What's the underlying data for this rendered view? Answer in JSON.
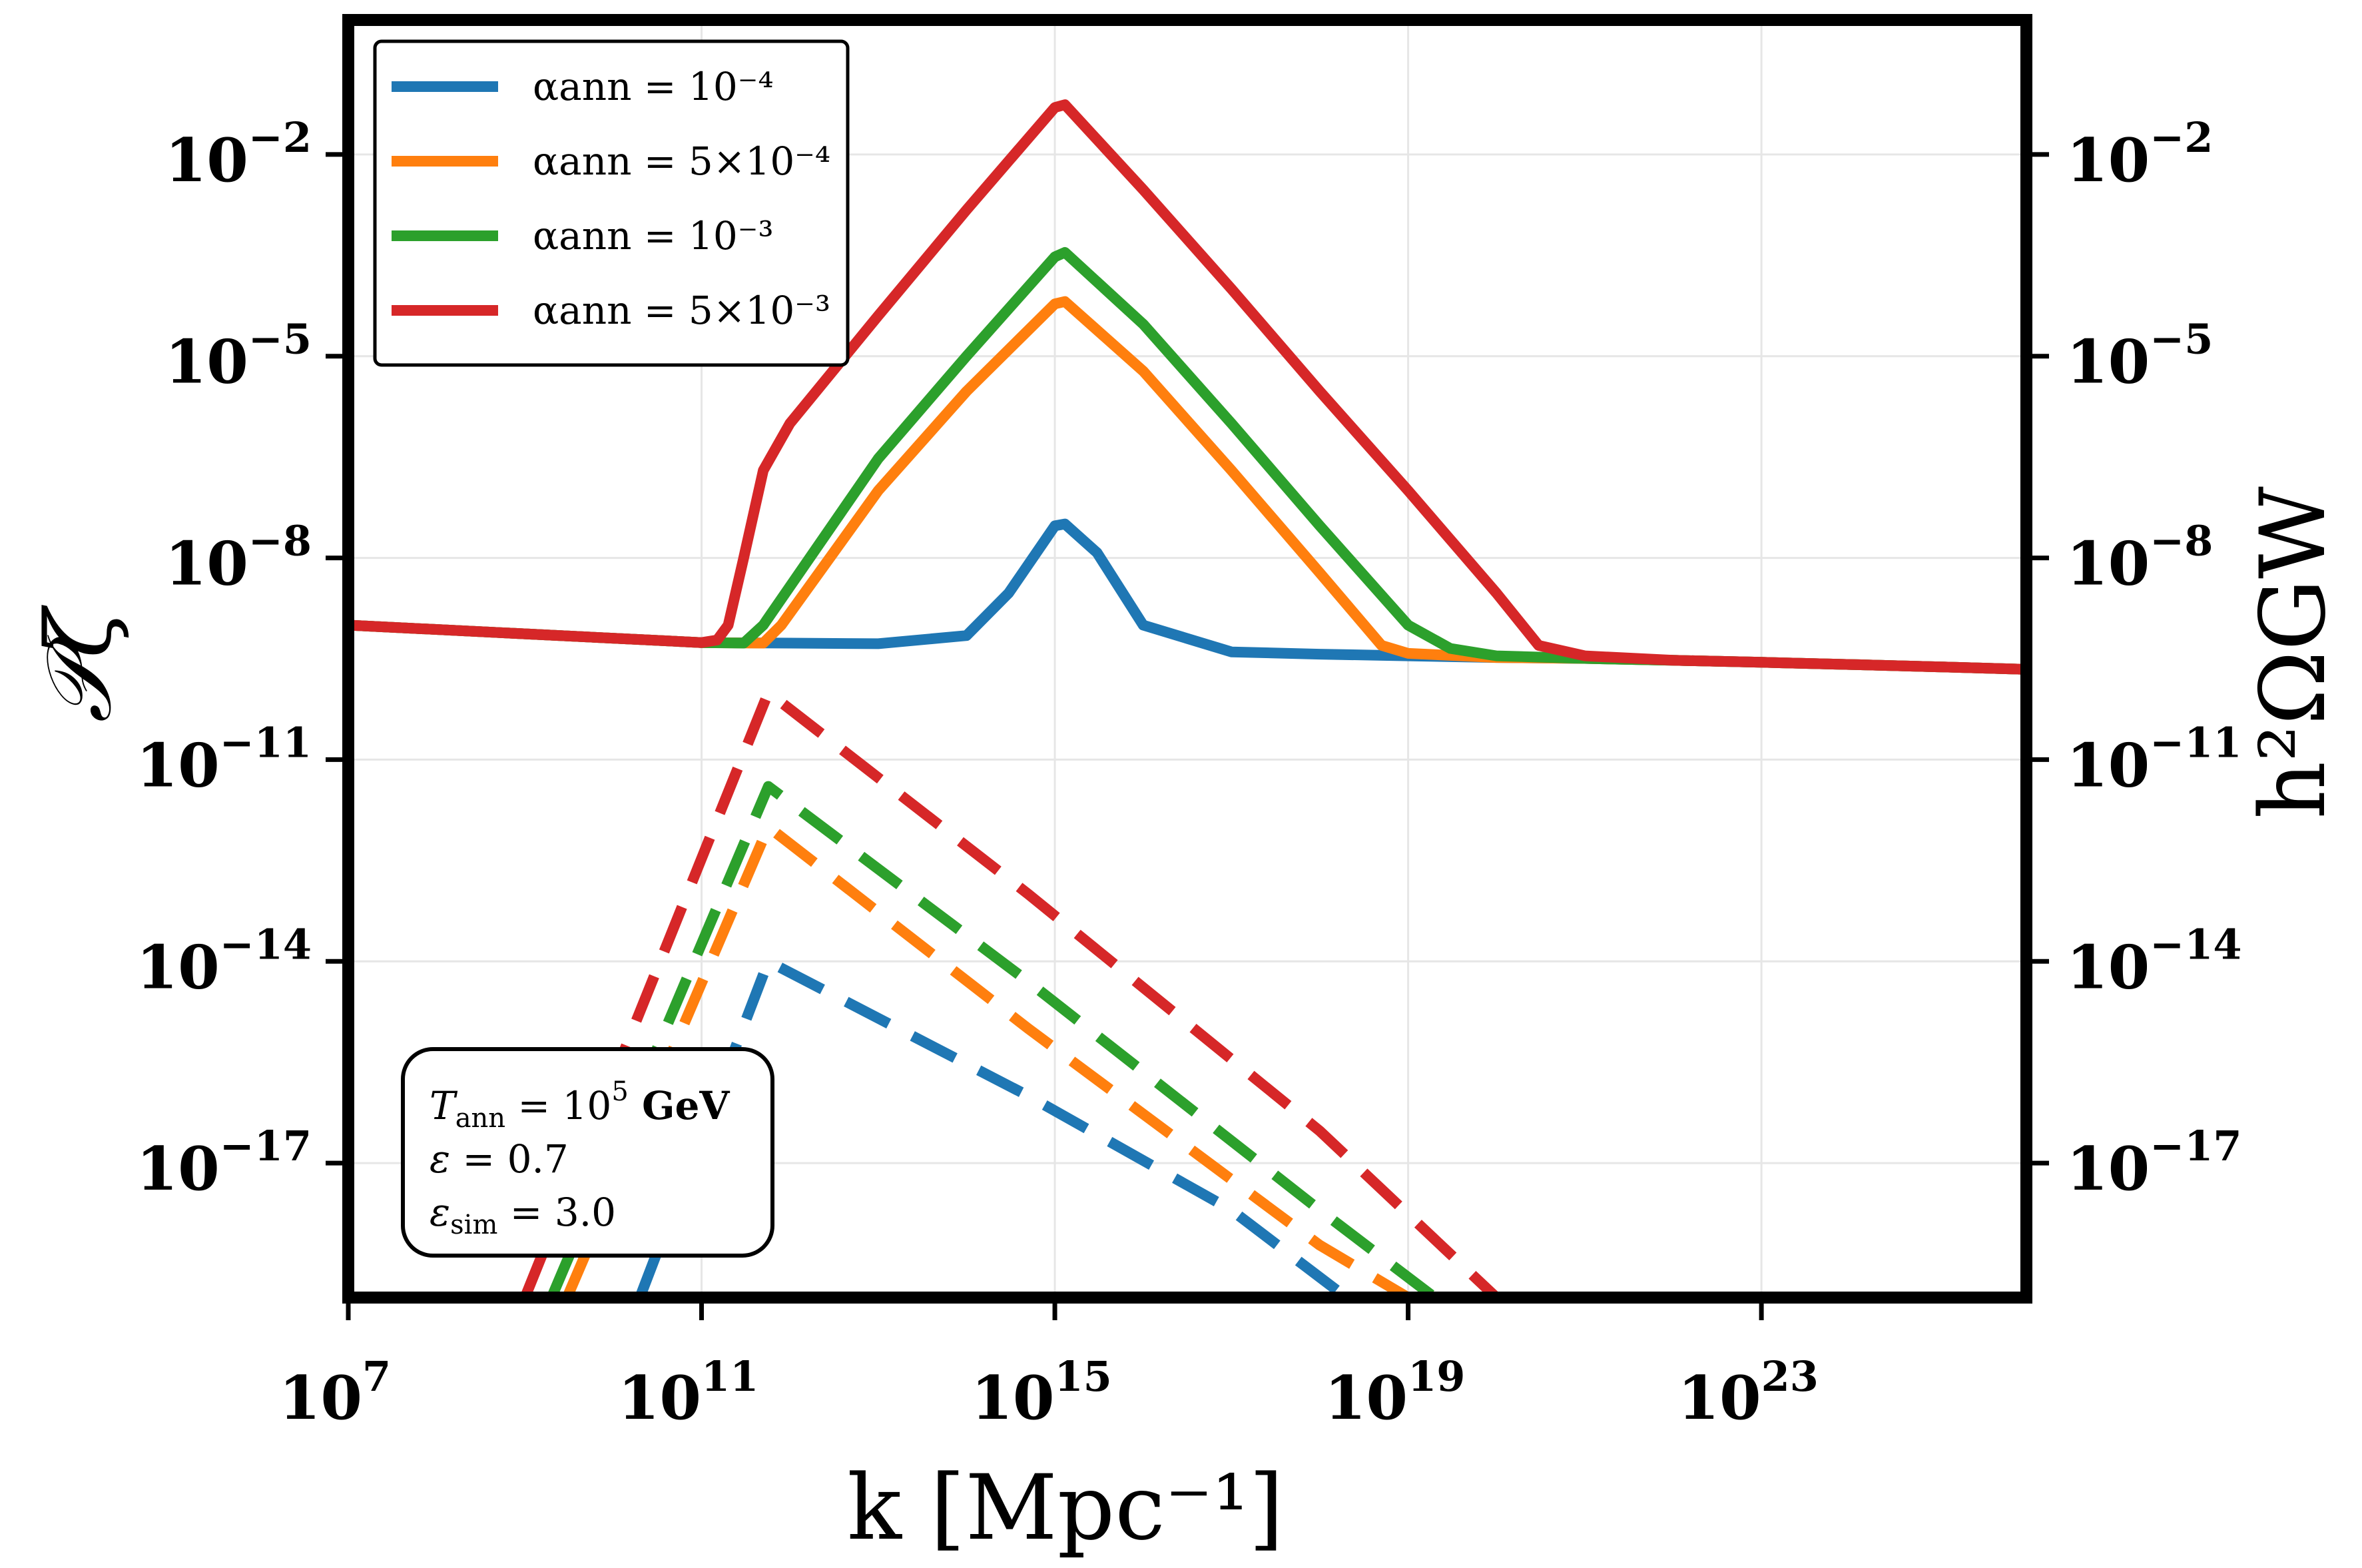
{
  "chart_data": {
    "type": "line",
    "xlabel": "k [Mpc⁻¹]",
    "ylabel_left": "𝒫ζ",
    "ylabel_right": "h²ΩGW",
    "x_scale": "log",
    "y_scale": "log",
    "xlim": [
      10000000.0,
      1e+26
    ],
    "ylim": [
      1e-19,
      1.0
    ],
    "x_ticks": [
      {
        "label": "10",
        "exp": "7",
        "value": 10000000.0
      },
      {
        "label": "10",
        "exp": "11",
        "value": 100000000000.0
      },
      {
        "label": "10",
        "exp": "15",
        "value": 1000000000000000.0
      },
      {
        "label": "10",
        "exp": "19",
        "value": 1e+19
      },
      {
        "label": "10",
        "exp": "23",
        "value": 1e+23
      }
    ],
    "y_ticks": [
      {
        "label": "10",
        "exp": "−2",
        "value": 0.01
      },
      {
        "label": "10",
        "exp": "−5",
        "value": 1e-05
      },
      {
        "label": "10",
        "exp": "−8",
        "value": 1e-08
      },
      {
        "label": "10",
        "exp": "−11",
        "value": 1e-11
      },
      {
        "label": "10",
        "exp": "−14",
        "value": 1e-14
      },
      {
        "label": "10",
        "exp": "−17",
        "value": 1e-17
      }
    ],
    "grid": true,
    "legend_position": "top-left",
    "series": [
      {
        "name": "αann = 10⁻⁴",
        "color": "#1f77b4",
        "power_spectrum": {
          "x": [
            10000000.0,
            100000000000.0,
            1000000000000.0,
            10000000000000.0,
            100000000000000.0,
            300000000000000.0,
            1000000000000000.0,
            1300000000000000.0,
            3000000000000000.0,
            1e+16,
            1e+17,
            1e+18,
            1e+19,
            1e+20,
            1e+21,
            1e+22,
            1e+23,
            1e+24,
            1e+25,
            1e+26
          ],
          "y": [
            1e-09,
            5.5e-10,
            5.4e-10,
            5.3e-10,
            7e-10,
            3e-09,
            3e-08,
            3.2e-08,
            1.2e-08,
            1e-09,
            4e-10,
            3.7e-10,
            3.5e-10,
            3.3e-10,
            3.2e-10,
            3e-10,
            2.8e-10,
            2.6e-10,
            2.4e-10,
            2.2e-10
          ]
        },
        "gw_spectrum": {
          "x": [
            20000000000.0,
            570000000000.0,
            500000000000000.0,
            1e+17,
            2e+18
          ],
          "y": [
            1e-19,
            1e-14,
            1e-16,
            2e-18,
            1e-19
          ]
        }
      },
      {
        "name": "αann = 5×10⁻⁴",
        "color": "#ff7f0e",
        "power_spectrum": {
          "x": [
            10000000.0,
            100000000000.0,
            500000000000.0,
            800000000000.0,
            10000000000000.0,
            100000000000000.0,
            1000000000000000.0,
            1300000000000000.0,
            1e+16,
            1e+17,
            1e+18,
            5e+18,
            1e+19,
            1e+20,
            1e+21,
            1e+22,
            1e+23,
            1e+24,
            1e+25,
            1e+26
          ],
          "y": [
            1e-09,
            5.5e-10,
            5.4e-10,
            1e-09,
            1e-07,
            3e-06,
            6e-05,
            6.5e-05,
            6e-06,
            2e-07,
            6e-09,
            5e-10,
            3.8e-10,
            3.3e-10,
            3.2e-10,
            3e-10,
            2.8e-10,
            2.6e-10,
            2.4e-10,
            2.2e-10
          ]
        },
        "gw_spectrum": {
          "x": [
            3000000000.0,
            570000000000.0,
            500000000000000.0,
            1e+18,
            1e+19
          ],
          "y": [
            1e-19,
            1e-12,
            1e-15,
            6e-19,
            1e-19
          ]
        }
      },
      {
        "name": "αann = 10⁻³",
        "color": "#2ca02c",
        "power_spectrum": {
          "x": [
            10000000.0,
            100000000000.0,
            300000000000.0,
            500000000000.0,
            10000000000000.0,
            100000000000000.0,
            1000000000000000.0,
            1300000000000000.0,
            1e+16,
            1e+17,
            1e+18,
            1e+19,
            3e+19,
            1e+20,
            1e+21,
            1e+22,
            1e+23,
            1e+24,
            1e+25,
            1e+26
          ],
          "y": [
            1e-09,
            5.5e-10,
            5.4e-10,
            1e-09,
            3e-07,
            1e-05,
            0.0003,
            0.00035,
            3e-05,
            1e-06,
            3e-08,
            1e-09,
            4.5e-10,
            3.5e-10,
            3.2e-10,
            3e-10,
            2.8e-10,
            2.6e-10,
            2.4e-10,
            2.2e-10
          ]
        },
        "gw_spectrum": {
          "x": [
            2000000000.0,
            570000000000.0,
            500000000000000.0,
            1e+18,
            2e+19
          ],
          "y": [
            1e-19,
            4e-12,
            5e-15,
            2e-18,
            1e-19
          ]
        }
      },
      {
        "name": "αann = 5×10⁻³",
        "color": "#d62728",
        "power_spectrum": {
          "x": [
            10000000.0,
            100000000000.0,
            150000000000.0,
            200000000000.0,
            300000000000.0,
            500000000000.0,
            1000000000000.0,
            10000000000000.0,
            100000000000000.0,
            1000000000000000.0,
            1300000000000000.0,
            1e+16,
            1e+17,
            1e+18,
            1e+19,
            1e+20,
            3e+20,
            1e+21,
            1e+22,
            1e+23,
            1e+24,
            1e+25,
            1e+26
          ],
          "y": [
            1e-09,
            5.5e-10,
            6e-10,
            1e-09,
            1e-08,
            2e-07,
            1e-06,
            4e-05,
            0.0015,
            0.05,
            0.055,
            0.003,
            0.0001,
            3e-06,
            1e-07,
            3e-09,
            5e-10,
            3.5e-10,
            3e-10,
            2.8e-10,
            2.6e-10,
            2.4e-10,
            2.2e-10
          ]
        },
        "gw_spectrum": {
          "x": [
            1000000000.0,
            570000000000.0,
            500000000000000.0,
            1e+18,
            1e+20
          ],
          "y": [
            1e-19,
            1e-10,
            1e-13,
            3e-17,
            1e-19
          ]
        }
      }
    ]
  },
  "info_box": {
    "line1_var": "T",
    "line1_sub": "ann",
    "line1_eq": " = 10",
    "line1_exp": "5",
    "line1_unit": " GeV",
    "line2_var": "ε",
    "line2_eq": " = 0.7",
    "line3_var": "ε",
    "line3_sub": "sim",
    "line3_eq": " = 3.0"
  },
  "colors": {
    "blue": "#1f77b4",
    "orange": "#ff7f0e",
    "green": "#2ca02c",
    "red": "#d62728"
  }
}
